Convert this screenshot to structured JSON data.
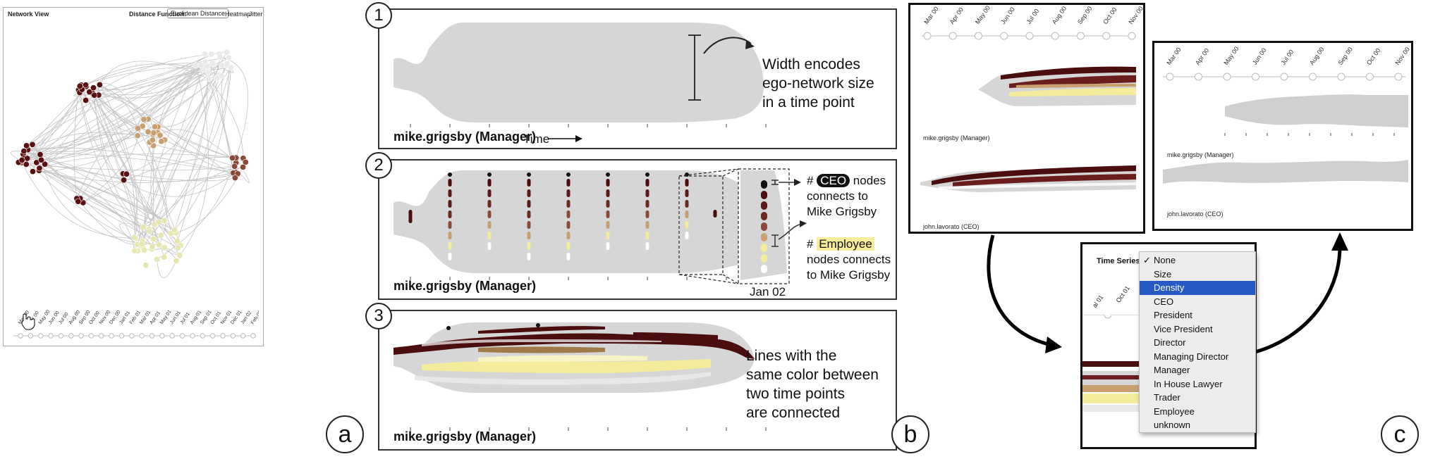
{
  "panel_a": {
    "title": "Network View",
    "distance_label": "Distance Function:",
    "distance_value": "Euclidean Distance",
    "link1": "Heatmap",
    "link2": "Jitter",
    "timeline_ticks": [
      "Mar 00",
      "Apr 00",
      "May 00",
      "Jun 00",
      "Jul 00",
      "Aug 00",
      "Sep 00",
      "Oct 00",
      "Nov 00",
      "Dec 00",
      "Jan 01",
      "Feb 01",
      "Mar 01",
      "Apr 01",
      "May 01",
      "Jun 01",
      "Jul 01",
      "Aug 01",
      "Sep 01",
      "Oct 01",
      "Nov 01",
      "Dec 01",
      "Jan 02",
      "Feb 02"
    ],
    "badge": "a",
    "colors": {
      "ceo": "#5a1010",
      "exec": "#8a4a3a",
      "manager": "#c8a070",
      "employee": "#e6e6b0",
      "other": "#cccccc"
    }
  },
  "panel_b": {
    "badge": "b",
    "sub1": {
      "number": "1",
      "ego_label": "mike.grigsby (Manager)",
      "time_label": "Time",
      "annotation": [
        "Width encodes",
        "ego-network size",
        "in a time point"
      ]
    },
    "sub2": {
      "number": "2",
      "ego_label": "mike.grigsby (Manager)",
      "zoom_date": "Jan 02",
      "ann_ceo_prefix": "#",
      "ann_ceo_tag": "CEO",
      "ann_ceo_rest": "nodes",
      "ann_ceo_lines": [
        "connects to",
        "Mike Grigsby"
      ],
      "ann_emp_prefix": "#",
      "ann_emp_tag": "Employee",
      "ann_emp_lines": [
        "nodes connects",
        "to Mike Grigsby"
      ]
    },
    "sub3": {
      "number": "3",
      "ego_label": "mike.grigsby (Manager)",
      "annotation": [
        "Lines with the",
        "same color between",
        "two time points",
        "are connected"
      ]
    }
  },
  "panel_c": {
    "badge": "c",
    "window1": {
      "ticks": [
        "Mar 00",
        "Apr 00",
        "May 00",
        "Jun 00",
        "Jul 00",
        "Aug 00",
        "Sep 00",
        "Oct 00",
        "Nov 00"
      ],
      "ego1": "mike.grigsby (Manager)",
      "ego2": "john.lavorato (CEO)"
    },
    "window2": {
      "ticks": [
        "Mar 00",
        "Apr 00",
        "May 00",
        "Jun 00",
        "Jul 00",
        "Aug 00",
        "Sep 00",
        "Oct 00",
        "Nov 00"
      ],
      "ego1": "mike.grigsby (Manager)",
      "ego2": "john.lavorato (CEO)"
    },
    "menu": {
      "header": "Time Series",
      "behind_ticks": [
        "al 01",
        "Oct 01"
      ],
      "items": [
        "None",
        "Size",
        "Density",
        "CEO",
        "President",
        "Vice President",
        "Director",
        "Managing Director",
        "Manager",
        "In House Lawyer",
        "Trader",
        "Employee",
        "unknown"
      ],
      "checked_index": 0,
      "selected_index": 2
    }
  }
}
